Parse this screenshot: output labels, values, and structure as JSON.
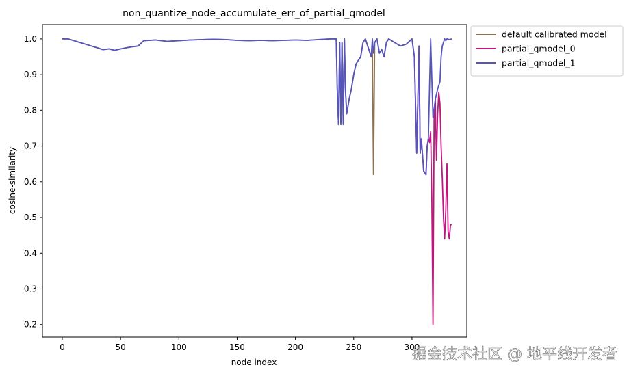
{
  "chart_data": {
    "type": "line",
    "title": "non_quantize_node_accumulate_err_of_partial_qmodel",
    "xlabel": "node index",
    "ylabel": "cosine-similarity",
    "xlim": [
      -17,
      347
    ],
    "ylim": [
      0.165,
      1.04
    ],
    "xticks": [
      0,
      50,
      100,
      150,
      200,
      250,
      300
    ],
    "xtick_labels": [
      "0",
      "50",
      "100",
      "150",
      "200",
      "250",
      "300"
    ],
    "yticks": [
      0.2,
      0.3,
      0.4,
      0.5,
      0.6,
      0.7,
      0.8,
      0.9,
      1.0
    ],
    "ytick_labels": [
      "0.2",
      "0.3",
      "0.4",
      "0.5",
      "0.6",
      "0.7",
      "0.8",
      "0.9",
      "1.0"
    ],
    "grid": false,
    "legend_position": "outside-top-right",
    "series": [
      {
        "name": "default calibrated model",
        "color": "#8c7355",
        "x": [
          0,
          5,
          10,
          15,
          20,
          25,
          30,
          35,
          40,
          45,
          50,
          55,
          60,
          65,
          70,
          80,
          90,
          100,
          110,
          120,
          130,
          140,
          150,
          160,
          170,
          180,
          190,
          200,
          210,
          220,
          230,
          235,
          236,
          237,
          238,
          239,
          240,
          241,
          242,
          243,
          244,
          246,
          248,
          250,
          252,
          254,
          256,
          258,
          260,
          262,
          264,
          265,
          266,
          267,
          268,
          270,
          272,
          274,
          276,
          278,
          280,
          285,
          290,
          295,
          300,
          302
        ],
        "y": [
          1.0,
          1.0,
          0.995,
          0.99,
          0.985,
          0.98,
          0.975,
          0.97,
          0.972,
          0.968,
          0.972,
          0.975,
          0.978,
          0.98,
          0.995,
          0.997,
          0.993,
          0.995,
          0.997,
          0.998,
          0.999,
          0.998,
          0.996,
          0.995,
          0.996,
          0.995,
          0.996,
          0.997,
          0.996,
          0.998,
          1.0,
          1.0,
          0.85,
          0.76,
          0.99,
          0.76,
          0.99,
          0.76,
          1.0,
          0.85,
          0.79,
          0.83,
          0.86,
          0.9,
          0.93,
          0.94,
          0.95,
          0.99,
          1.0,
          0.98,
          0.96,
          0.95,
          0.98,
          0.62,
          0.99,
          1.0,
          0.96,
          0.97,
          0.95,
          0.99,
          1.0,
          0.99,
          0.98,
          0.985,
          1.0,
          0.95
        ]
      },
      {
        "name": "partial_qmodel_0",
        "color": "#c0167e",
        "x": [
          302,
          304,
          306,
          307,
          308,
          310,
          312,
          313,
          314,
          315,
          316,
          317,
          318,
          319,
          320,
          321,
          322,
          323,
          324,
          325,
          326,
          327,
          328,
          329,
          330,
          331,
          332,
          333,
          334
        ],
        "y": [
          0.95,
          0.68,
          0.98,
          0.68,
          0.72,
          0.63,
          0.62,
          0.7,
          0.72,
          0.71,
          0.74,
          0.55,
          0.2,
          0.8,
          0.83,
          0.66,
          0.79,
          0.85,
          0.82,
          0.7,
          0.61,
          0.5,
          0.44,
          0.52,
          0.65,
          0.46,
          0.44,
          0.48,
          0.48
        ]
      },
      {
        "name": "partial_qmodel_1",
        "color": "#5555bb",
        "x": [
          0,
          5,
          10,
          15,
          20,
          25,
          30,
          35,
          40,
          45,
          50,
          55,
          60,
          65,
          70,
          80,
          90,
          100,
          110,
          120,
          130,
          140,
          150,
          160,
          170,
          180,
          190,
          200,
          210,
          220,
          230,
          235,
          236,
          237,
          238,
          239,
          240,
          241,
          242,
          243,
          244,
          246,
          248,
          250,
          252,
          254,
          256,
          258,
          260,
          262,
          264,
          265,
          266,
          267,
          268,
          270,
          272,
          274,
          276,
          278,
          280,
          285,
          290,
          295,
          300,
          302,
          304,
          306,
          307,
          308,
          310,
          312,
          313,
          314,
          316,
          318,
          320,
          322,
          324,
          325,
          326,
          327,
          328,
          329,
          330,
          332,
          334
        ],
        "y": [
          1.0,
          1.0,
          0.995,
          0.99,
          0.985,
          0.98,
          0.975,
          0.97,
          0.972,
          0.968,
          0.972,
          0.975,
          0.978,
          0.98,
          0.995,
          0.997,
          0.993,
          0.995,
          0.997,
          0.998,
          0.999,
          0.998,
          0.996,
          0.995,
          0.996,
          0.995,
          0.996,
          0.997,
          0.996,
          0.998,
          1.0,
          1.0,
          0.85,
          0.76,
          0.99,
          0.76,
          0.99,
          0.76,
          1.0,
          0.85,
          0.79,
          0.83,
          0.86,
          0.9,
          0.93,
          0.94,
          0.95,
          0.99,
          1.0,
          0.98,
          0.96,
          0.95,
          1.0,
          0.96,
          0.99,
          1.0,
          0.96,
          0.97,
          0.95,
          0.99,
          1.0,
          0.99,
          0.98,
          0.985,
          1.0,
          0.95,
          0.68,
          0.98,
          0.68,
          0.72,
          0.63,
          0.62,
          0.7,
          0.72,
          1.0,
          0.78,
          0.83,
          0.86,
          0.88,
          0.95,
          0.98,
          0.99,
          1.0,
          0.995,
          1.0,
          0.998,
          1.0
        ]
      }
    ]
  },
  "watermark": "掘金技术社区 @ 地平线开发者"
}
